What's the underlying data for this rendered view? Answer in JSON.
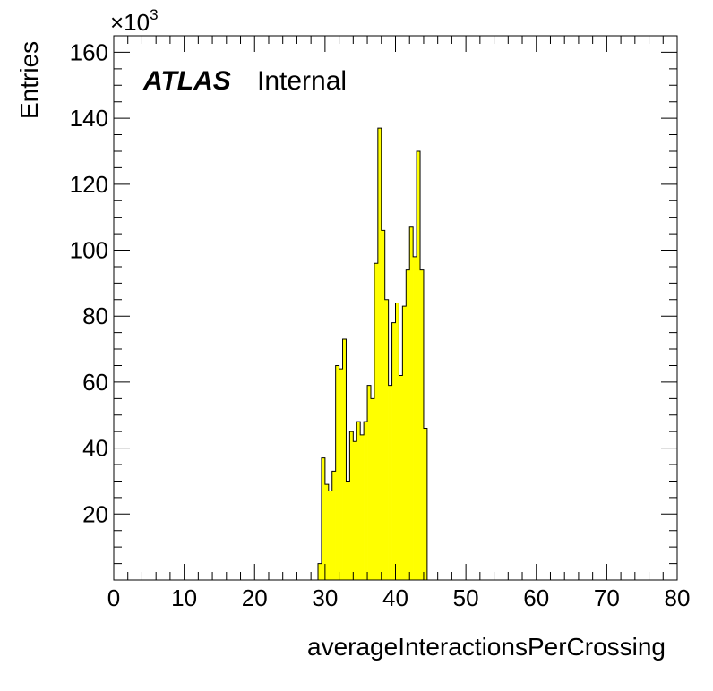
{
  "chart_data": {
    "type": "bar",
    "style": "histogram",
    "fill_color": "#ffff00",
    "edge_color": "#000000",
    "xlabel": "averageInteractionsPerCrossing",
    "ylabel": "Entries",
    "y_multiplier": "×10",
    "y_multiplier_exp": "3",
    "xlim": [
      0,
      80
    ],
    "ylim": [
      0,
      165
    ],
    "x_ticks": [
      "0",
      "10",
      "20",
      "30",
      "40",
      "50",
      "60",
      "70",
      "80"
    ],
    "y_ticks": [
      "20",
      "40",
      "60",
      "80",
      "100",
      "120",
      "140",
      "160"
    ],
    "x_tick_values": [
      0,
      10,
      20,
      30,
      40,
      50,
      60,
      70,
      80
    ],
    "y_tick_values": [
      20,
      40,
      60,
      80,
      100,
      120,
      140,
      160
    ],
    "bins": [
      {
        "x0": 29.0,
        "x1": 29.5,
        "value": 5
      },
      {
        "x0": 29.5,
        "x1": 30.0,
        "value": 37
      },
      {
        "x0": 30.0,
        "x1": 30.5,
        "value": 29
      },
      {
        "x0": 30.5,
        "x1": 31.0,
        "value": 27
      },
      {
        "x0": 31.0,
        "x1": 31.5,
        "value": 33
      },
      {
        "x0": 31.5,
        "x1": 32.0,
        "value": 65
      },
      {
        "x0": 32.0,
        "x1": 32.5,
        "value": 64
      },
      {
        "x0": 32.5,
        "x1": 33.0,
        "value": 73
      },
      {
        "x0": 33.0,
        "x1": 33.5,
        "value": 30
      },
      {
        "x0": 33.5,
        "x1": 34.0,
        "value": 45
      },
      {
        "x0": 34.0,
        "x1": 34.5,
        "value": 42
      },
      {
        "x0": 34.5,
        "x1": 35.0,
        "value": 48
      },
      {
        "x0": 35.0,
        "x1": 35.5,
        "value": 44
      },
      {
        "x0": 35.5,
        "x1": 36.0,
        "value": 48
      },
      {
        "x0": 36.0,
        "x1": 36.5,
        "value": 59
      },
      {
        "x0": 36.5,
        "x1": 37.0,
        "value": 55
      },
      {
        "x0": 37.0,
        "x1": 37.5,
        "value": 96
      },
      {
        "x0": 37.5,
        "x1": 38.0,
        "value": 137
      },
      {
        "x0": 38.0,
        "x1": 38.5,
        "value": 106
      },
      {
        "x0": 38.5,
        "x1": 39.0,
        "value": 85
      },
      {
        "x0": 39.0,
        "x1": 39.5,
        "value": 59
      },
      {
        "x0": 39.5,
        "x1": 40.0,
        "value": 78
      },
      {
        "x0": 40.0,
        "x1": 40.5,
        "value": 84
      },
      {
        "x0": 40.5,
        "x1": 41.0,
        "value": 62
      },
      {
        "x0": 41.0,
        "x1": 41.5,
        "value": 83
      },
      {
        "x0": 41.5,
        "x1": 42.0,
        "value": 94
      },
      {
        "x0": 42.0,
        "x1": 42.5,
        "value": 107
      },
      {
        "x0": 42.5,
        "x1": 43.0,
        "value": 98
      },
      {
        "x0": 43.0,
        "x1": 43.5,
        "value": 130
      },
      {
        "x0": 43.5,
        "x1": 44.0,
        "value": 94
      },
      {
        "x0": 44.0,
        "x1": 44.5,
        "value": 46
      }
    ],
    "annotations": {
      "atlas": "ATLAS",
      "label": "Internal"
    }
  }
}
